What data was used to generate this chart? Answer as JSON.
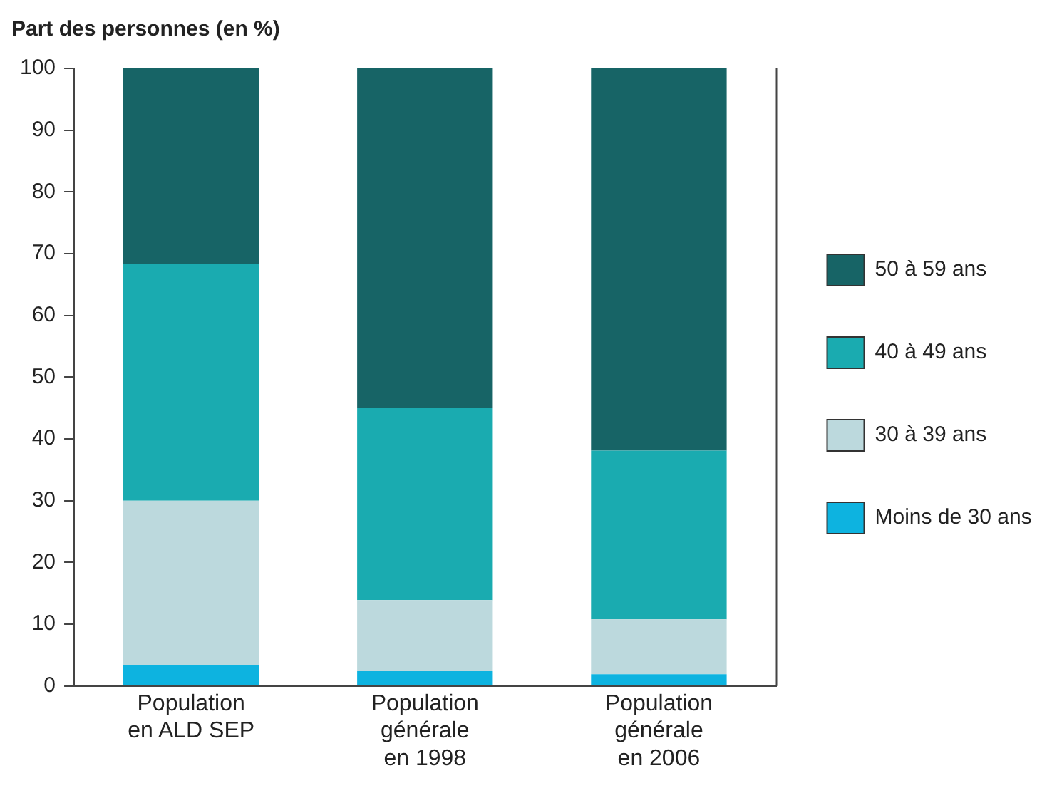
{
  "chart_data": {
    "type": "bar",
    "title": "Part des personnes (en %)",
    "stacked": true,
    "categories": [
      "Population en ALD SEP",
      "Population générale en 1998",
      "Population générale en 2006"
    ],
    "series": [
      {
        "name": "Moins de 30 ans",
        "color": "#0db3e0",
        "values": [
          3.4,
          2.4,
          1.9
        ]
      },
      {
        "name": "30 à 39 ans",
        "color": "#bcd9dd",
        "values": [
          26.6,
          11.5,
          8.9
        ]
      },
      {
        "name": "40 à 49 ans",
        "color": "#1aabb0",
        "values": [
          38.3,
          31.1,
          27.3
        ]
      },
      {
        "name": "50 à 59 ans",
        "color": "#176466",
        "values": [
          31.7,
          55,
          61.9
        ]
      }
    ],
    "ylim": [
      0,
      100
    ],
    "yticks": [
      0,
      10,
      20,
      30,
      40,
      50,
      60,
      70,
      80,
      90,
      100
    ],
    "grid": false,
    "legend": "right"
  }
}
